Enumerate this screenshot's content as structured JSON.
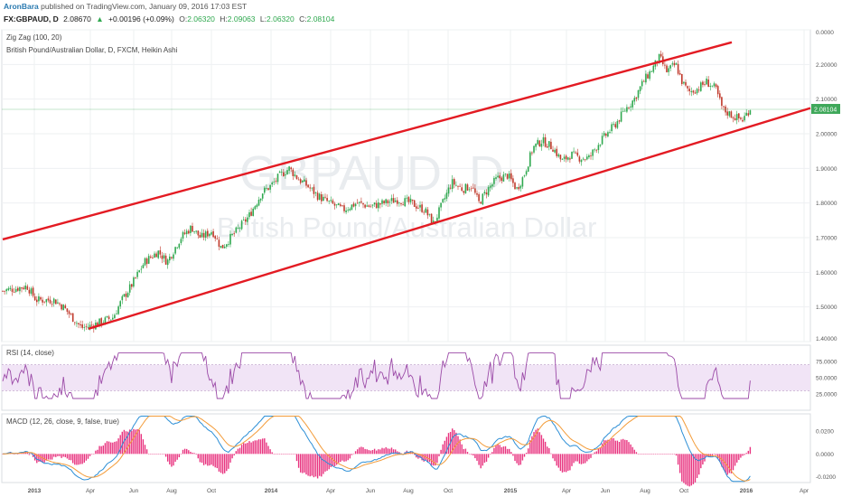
{
  "header": {
    "author": "AronBara",
    "published": "published on TradingView.com, January 09, 2016 17:03 EST",
    "symbol": "FX:GBPAUD, D",
    "last": "2.08670",
    "change_arrow": "▲",
    "change": "+0.00196 (+0.09%)",
    "o_label": "O:",
    "o_value": "2.06320",
    "h_label": "H:",
    "h_value": "2.09063",
    "l_label": "L:",
    "l_value": "2.06320",
    "c_label": "C:",
    "c_value": "2.08104"
  },
  "colors": {
    "up": "#2fa84f",
    "down": "#c0392b",
    "channel": "#e31b23",
    "rsi": "#9b4aa7",
    "rsi_band": "#f1e4f6",
    "macd": "#2d8fd6",
    "signal": "#f39c3a",
    "hist": "#e8337f",
    "price_tag": "#3fa85a",
    "grid": "#eef0f2"
  },
  "main_panel": {
    "indicator_title": "Zig Zag (100, 20)",
    "instrument_title": "British Pound/Australian Dollar, D, FXCM, Heikin Ashi",
    "watermark_symbol": "GBPAUD, D",
    "watermark_name": "British Pound/Australian Dollar",
    "y_ticks": [
      "0.0000",
      "2.20000",
      "2.10000",
      "2.00000",
      "1.90000",
      "1.80000",
      "1.70000",
      "1.60000",
      "1.50000",
      "1.40000"
    ],
    "last_price_tag": "2.08104"
  },
  "rsi_panel": {
    "title": "RSI (14, close)",
    "y_ticks": [
      "75.0000",
      "50.0000",
      "25.0000"
    ]
  },
  "macd_panel": {
    "title": "MACD (12, 26, close, 9, false, true)",
    "y_ticks": [
      "0.0200",
      "0.0000",
      "-0.0200"
    ]
  },
  "x_axis": {
    "labels": [
      "2013",
      "Apr",
      "Jun",
      "Aug",
      "Oct",
      "2014",
      "Apr",
      "Jun",
      "Aug",
      "Oct",
      "2015",
      "Apr",
      "Jun",
      "Aug",
      "Oct",
      "2016",
      "Apr"
    ],
    "bold": [
      "2013",
      "2014",
      "2015",
      "2016"
    ]
  },
  "chart_data": {
    "type": "candlestick",
    "price_path": [
      [
        0,
        1.545
      ],
      [
        30,
        1.56
      ],
      [
        40,
        1.52
      ],
      [
        60,
        1.52
      ],
      [
        70,
        1.5
      ],
      [
        90,
        1.44
      ],
      [
        100,
        1.445
      ],
      [
        125,
        1.47
      ],
      [
        135,
        1.52
      ],
      [
        145,
        1.56
      ],
      [
        160,
        1.63
      ],
      [
        175,
        1.66
      ],
      [
        185,
        1.63
      ],
      [
        200,
        1.7
      ],
      [
        212,
        1.73
      ],
      [
        222,
        1.7
      ],
      [
        235,
        1.72
      ],
      [
        245,
        1.67
      ],
      [
        262,
        1.72
      ],
      [
        275,
        1.76
      ],
      [
        290,
        1.83
      ],
      [
        300,
        1.85
      ],
      [
        310,
        1.88
      ],
      [
        320,
        1.9
      ],
      [
        330,
        1.87
      ],
      [
        340,
        1.85
      ],
      [
        352,
        1.82
      ],
      [
        365,
        1.8
      ],
      [
        380,
        1.78
      ],
      [
        395,
        1.8
      ],
      [
        410,
        1.79
      ],
      [
        425,
        1.8
      ],
      [
        440,
        1.81
      ],
      [
        455,
        1.8
      ],
      [
        470,
        1.78
      ],
      [
        480,
        1.74
      ],
      [
        490,
        1.8
      ],
      [
        500,
        1.86
      ],
      [
        512,
        1.84
      ],
      [
        522,
        1.85
      ],
      [
        530,
        1.8
      ],
      [
        540,
        1.84
      ],
      [
        550,
        1.87
      ],
      [
        562,
        1.88
      ],
      [
        572,
        1.84
      ],
      [
        580,
        1.88
      ],
      [
        590,
        1.96
      ],
      [
        600,
        1.98
      ],
      [
        612,
        1.96
      ],
      [
        622,
        1.92
      ],
      [
        632,
        1.94
      ],
      [
        642,
        1.93
      ],
      [
        652,
        1.93
      ],
      [
        662,
        1.97
      ],
      [
        672,
        2.0
      ],
      [
        682,
        2.03
      ],
      [
        692,
        2.07
      ],
      [
        702,
        2.1
      ],
      [
        712,
        2.15
      ],
      [
        720,
        2.18
      ],
      [
        730,
        2.22
      ],
      [
        738,
        2.18
      ],
      [
        748,
        2.2
      ],
      [
        755,
        2.15
      ],
      [
        762,
        2.12
      ],
      [
        772,
        2.13
      ],
      [
        782,
        2.15
      ],
      [
        792,
        2.13
      ],
      [
        800,
        2.07
      ],
      [
        812,
        2.05
      ],
      [
        822,
        2.04
      ],
      [
        832,
        2.08
      ]
    ],
    "channel_upper": [
      [
        1.695,
        "2013-01"
      ],
      [
        2.264,
        "2015-12"
      ]
    ],
    "channel_lower": [
      [
        1.44,
        "2013-04"
      ],
      [
        2.08,
        "2016-01"
      ]
    ],
    "y_range": [
      1.4,
      2.3
    ],
    "rsi_range": [
      0,
      100
    ],
    "rsi_band": [
      30,
      70
    ],
    "macd_range": [
      -0.025,
      0.035
    ]
  }
}
